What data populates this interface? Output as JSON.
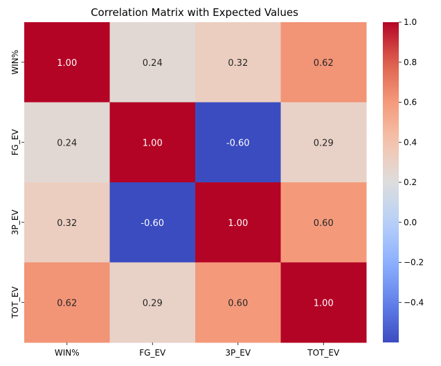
{
  "chart_data": {
    "type": "heatmap",
    "title": "Correlation Matrix with Expected Values",
    "x_categories": [
      "WIN%",
      "FG_EV",
      "3P_EV",
      "TOT_EV"
    ],
    "y_categories": [
      "WIN%",
      "FG_EV",
      "3P_EV",
      "TOT_EV"
    ],
    "values": [
      [
        1.0,
        0.24,
        0.32,
        0.62
      ],
      [
        0.24,
        1.0,
        -0.6,
        0.29
      ],
      [
        0.32,
        -0.6,
        1.0,
        0.6
      ],
      [
        0.62,
        0.29,
        0.6,
        1.0
      ]
    ],
    "annotations": [
      [
        "1.00",
        "0.24",
        "0.32",
        "0.62"
      ],
      [
        "0.24",
        "1.00",
        "-0.60",
        "0.29"
      ],
      [
        "0.32",
        "-0.60",
        "1.00",
        "0.60"
      ],
      [
        "0.62",
        "0.29",
        "0.60",
        "1.00"
      ]
    ],
    "colormap": "coolwarm",
    "vmin": -0.6,
    "vmax": 1.0,
    "colorbar_ticks": [
      -0.4,
      -0.2,
      0.0,
      0.2,
      0.4,
      0.6,
      0.8,
      1.0
    ],
    "colorbar_tick_labels": [
      "−0.4",
      "−0.2",
      "0.0",
      "0.2",
      "0.4",
      "0.6",
      "0.8",
      "1.0"
    ]
  }
}
